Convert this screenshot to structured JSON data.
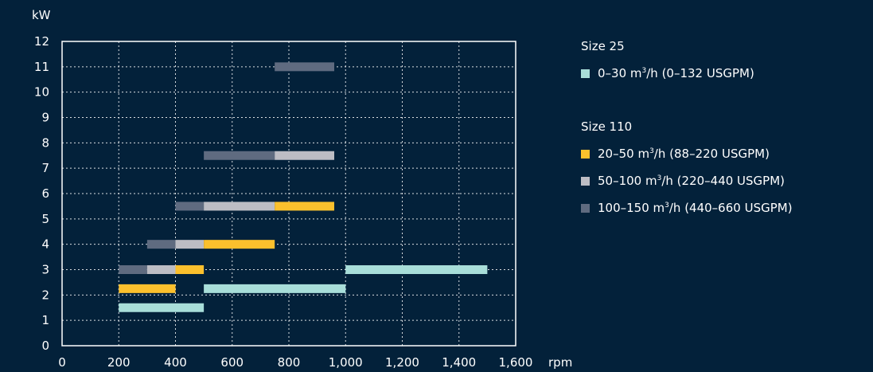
{
  "chart_data": {
    "type": "gantt-bar",
    "ylabel": "kW",
    "xlabel": "rpm",
    "xlim": [
      0,
      1600
    ],
    "ylim": [
      0,
      12
    ],
    "x_ticks": [
      "0",
      "200",
      "400",
      "600",
      "800",
      "1,000",
      "1,200",
      "1,400",
      "1,600"
    ],
    "y_ticks": [
      "0",
      "1",
      "2",
      "3",
      "4",
      "5",
      "6",
      "7",
      "8",
      "9",
      "10",
      "11",
      "12"
    ],
    "grid": true,
    "series": [
      {
        "name": "0–30 m³/h (0–132 USGPM)",
        "group": "Size 25",
        "color": "#a8ded9"
      },
      {
        "name": "20–50 m³/h (88–220 USGPM)",
        "group": "Size 110",
        "color": "#fbc02d"
      },
      {
        "name": "50–100 m³/h (220–440 USGPM)",
        "group": "Size 110",
        "color": "#bdbdc4"
      },
      {
        "name": "100–150 m³/h (440–660 USGPM)",
        "group": "Size 110",
        "color": "#5f6b80"
      }
    ],
    "bars": [
      {
        "series": 0,
        "x_start": 200,
        "x_end": 500,
        "y": 1.5
      },
      {
        "series": 1,
        "x_start": 200,
        "x_end": 400,
        "y": 2.25
      },
      {
        "series": 0,
        "x_start": 500,
        "x_end": 1000,
        "y": 2.25
      },
      {
        "series": 3,
        "x_start": 200,
        "x_end": 300,
        "y": 3.0
      },
      {
        "series": 2,
        "x_start": 300,
        "x_end": 400,
        "y": 3.0
      },
      {
        "series": 1,
        "x_start": 400,
        "x_end": 500,
        "y": 3.0
      },
      {
        "series": 0,
        "x_start": 1000,
        "x_end": 1500,
        "y": 3.0
      },
      {
        "series": 3,
        "x_start": 300,
        "x_end": 400,
        "y": 4.0
      },
      {
        "series": 2,
        "x_start": 400,
        "x_end": 500,
        "y": 4.0
      },
      {
        "series": 1,
        "x_start": 500,
        "x_end": 750,
        "y": 4.0
      },
      {
        "series": 3,
        "x_start": 400,
        "x_end": 500,
        "y": 5.5
      },
      {
        "series": 2,
        "x_start": 500,
        "x_end": 750,
        "y": 5.5
      },
      {
        "series": 1,
        "x_start": 750,
        "x_end": 960,
        "y": 5.5
      },
      {
        "series": 3,
        "x_start": 500,
        "x_end": 750,
        "y": 7.5
      },
      {
        "series": 2,
        "x_start": 750,
        "x_end": 960,
        "y": 7.5
      },
      {
        "series": 3,
        "x_start": 750,
        "x_end": 960,
        "y": 11.0
      }
    ]
  },
  "legend": {
    "groups": [
      {
        "title": "Size 25",
        "items": [
          {
            "base": "0–30 m",
            "sup": "3",
            "rest": "/h (0–132 USGPM)",
            "color": "#a8ded9"
          }
        ]
      },
      {
        "title": "Size 110",
        "items": [
          {
            "base": "20–50 m",
            "sup": "3",
            "rest": "/h (88–220 USGPM)",
            "color": "#fbc02d"
          },
          {
            "base": "50–100 m",
            "sup": "3",
            "rest": "/h (220–440 USGPM)",
            "color": "#bdbdc4"
          },
          {
            "base": "100–150 m",
            "sup": "3",
            "rest": "/h (440–660 USGPM)",
            "color": "#5f6b80"
          }
        ]
      }
    ]
  }
}
